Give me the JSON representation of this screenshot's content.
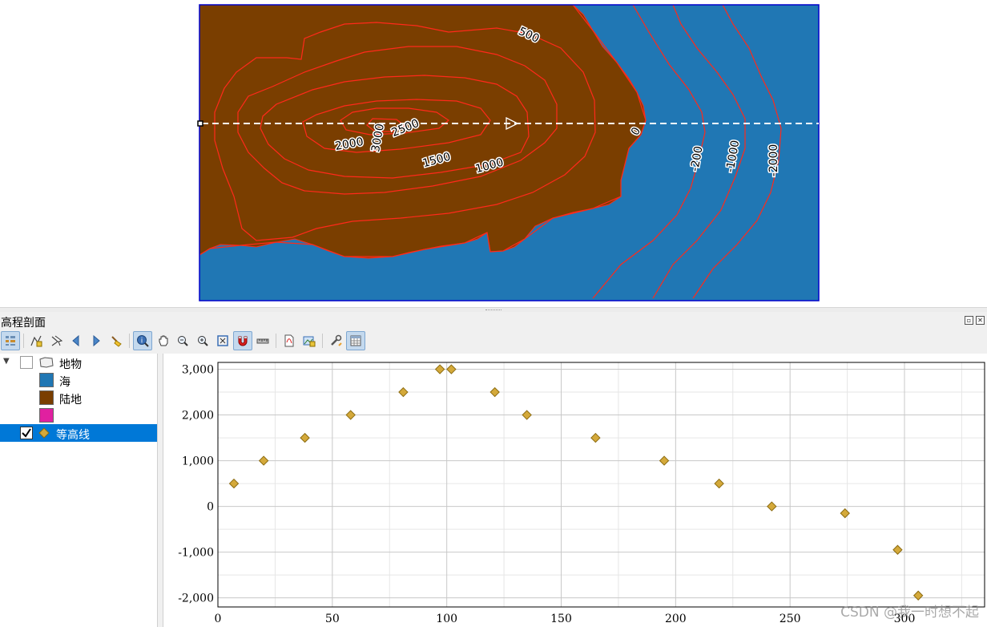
{
  "map": {
    "colors": {
      "sea": "#2077b4",
      "land": "#7a3e00",
      "contour": "#ff2a1a",
      "frame": "#0000cc",
      "profile_line": "#ffffff"
    },
    "contour_labels": [
      "500",
      "2500",
      "3000",
      "2000",
      "1500",
      "1000",
      "0",
      "-200",
      "-1000",
      "-2000"
    ]
  },
  "dock": {
    "title": "高程剖面",
    "float_icon": "float-icon",
    "close_icon": "close-icon"
  },
  "toolbar": {
    "icons": [
      "layer-tree-icon",
      "capture-curve-icon",
      "capture-curve-from-feature-icon",
      "previous-icon",
      "next-icon",
      "clear-icon",
      "identify-icon",
      "pan-icon",
      "zoom-x-icon",
      "zoom-icon",
      "reset-view-icon",
      "snap-magnet-icon",
      "measure-icon",
      "export-pdf-icon",
      "export-image-icon",
      "settings-icon",
      "table-icon"
    ]
  },
  "tree": {
    "group": {
      "label": "地物",
      "checked": false,
      "expanded": true
    },
    "classes": [
      {
        "label": "海",
        "color": "#2077b4"
      },
      {
        "label": "陆地",
        "color": "#7a3e00"
      },
      {
        "label": "",
        "color": "#e020a0"
      }
    ],
    "contour_layer": {
      "label": "等高线",
      "checked": true,
      "marker_color": "#d4a93a"
    }
  },
  "chart_data": {
    "type": "scatter",
    "x_ticks": [
      "0",
      "50",
      "100",
      "150",
      "200",
      "250",
      "300"
    ],
    "y_ticks": [
      "3,000",
      "2,000",
      "1,000",
      "0",
      "-1,000",
      "-2,000"
    ],
    "xlim": [
      0,
      335
    ],
    "ylim": [
      -2200,
      3150
    ],
    "grid": true,
    "marker": "diamond",
    "marker_color": "#d4a93a",
    "series": [
      {
        "x": [
          7,
          20,
          38,
          58,
          81,
          97,
          102,
          121,
          135,
          165,
          195,
          219,
          242,
          274,
          297,
          306
        ],
        "y": [
          500,
          1000,
          1500,
          2000,
          2500,
          3000,
          3000,
          2500,
          2000,
          1500,
          1000,
          500,
          0,
          -150,
          -950,
          -1950
        ]
      }
    ]
  },
  "watermark": "CSDN @我一时想不起"
}
